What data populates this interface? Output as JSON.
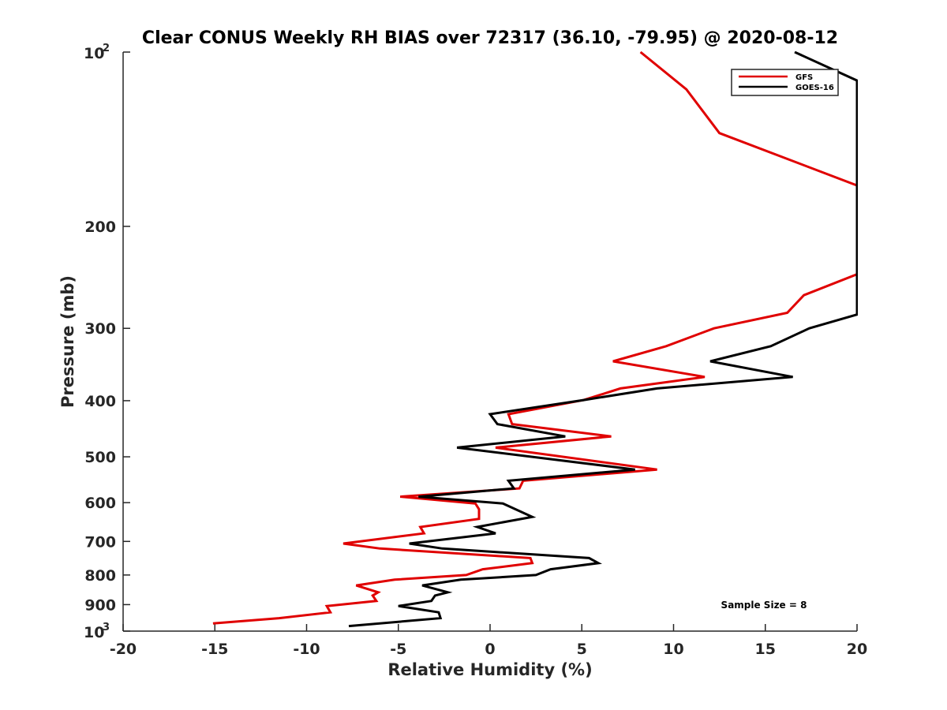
{
  "chart_data": {
    "type": "line",
    "title": "Clear CONUS Weekly RH BIAS over 72317 (36.10, -79.95) @ 2020-08-12",
    "xlabel": "Relative Humidity (%)",
    "ylabel": "Pressure (mb)",
    "xlim": [
      -20,
      20
    ],
    "ylim": [
      100,
      1000
    ],
    "y_scale": "log",
    "y_reversed": true,
    "x_ticks": [
      "-20",
      "-15",
      "-10",
      "-5",
      "0",
      "5",
      "10",
      "15",
      "20"
    ],
    "y_ticks": [
      {
        "value": 100,
        "label": "10",
        "sup": "2"
      },
      {
        "value": 200,
        "label": "200"
      },
      {
        "value": 300,
        "label": "300"
      },
      {
        "value": 400,
        "label": "400"
      },
      {
        "value": 500,
        "label": "500"
      },
      {
        "value": 600,
        "label": "600"
      },
      {
        "value": 700,
        "label": "700"
      },
      {
        "value": 800,
        "label": "800"
      },
      {
        "value": 900,
        "label": "900"
      },
      {
        "value": 1000,
        "label": "10",
        "sup": "3"
      }
    ],
    "legend_position": "top-right",
    "annotation": "Sample Size = 8",
    "series": [
      {
        "name": "GFS",
        "color": "#e00000",
        "points": [
          [
            8.2,
            100
          ],
          [
            10.7,
            116
          ],
          [
            12.5,
            138
          ],
          [
            20,
            170
          ],
          [
            20,
            242
          ],
          [
            17.1,
            263
          ],
          [
            16.2,
            282
          ],
          [
            12.2,
            300
          ],
          [
            9.6,
            322
          ],
          [
            6.7,
            342
          ],
          [
            11.7,
            364
          ],
          [
            7.1,
            381
          ],
          [
            5.1,
            399
          ],
          [
            1.0,
            422
          ],
          [
            1.2,
            439
          ],
          [
            6.6,
            461
          ],
          [
            0.3,
            482
          ],
          [
            9.1,
            526
          ],
          [
            1.8,
            550
          ],
          [
            1.6,
            567
          ],
          [
            -4.9,
            586
          ],
          [
            -0.8,
            602
          ],
          [
            -0.6,
            616
          ],
          [
            -0.6,
            640
          ],
          [
            -3.8,
            661
          ],
          [
            -3.6,
            678
          ],
          [
            -8.0,
            706
          ],
          [
            -6.0,
            720
          ],
          [
            2.2,
            748
          ],
          [
            2.3,
            763
          ],
          [
            -0.4,
            782
          ],
          [
            -1.3,
            800
          ],
          [
            -5.2,
            815
          ],
          [
            -7.3,
            834
          ],
          [
            -6.1,
            857
          ],
          [
            -6.4,
            868
          ],
          [
            -6.2,
            887
          ],
          [
            -8.9,
            905
          ],
          [
            -8.7,
            928
          ],
          [
            -11.5,
            950
          ],
          [
            -15.1,
            970
          ]
        ]
      },
      {
        "name": "GOES-16",
        "color": "#000000",
        "points": [
          [
            16.6,
            100
          ],
          [
            20,
            112
          ],
          [
            20,
            284
          ],
          [
            17.4,
            300
          ],
          [
            15.3,
            322
          ],
          [
            12.0,
            342
          ],
          [
            16.5,
            364
          ],
          [
            9.1,
            381
          ],
          [
            5.1,
            399
          ],
          [
            0.0,
            422
          ],
          [
            0.4,
            439
          ],
          [
            4.1,
            461
          ],
          [
            -1.8,
            482
          ],
          [
            7.9,
            526
          ],
          [
            1.0,
            550
          ],
          [
            1.3,
            567
          ],
          [
            -3.9,
            586
          ],
          [
            0.7,
            602
          ],
          [
            2.3,
            635
          ],
          [
            -0.7,
            661
          ],
          [
            0.3,
            678
          ],
          [
            -4.4,
            706
          ],
          [
            -2.6,
            720
          ],
          [
            5.4,
            748
          ],
          [
            5.9,
            763
          ],
          [
            3.3,
            782
          ],
          [
            2.5,
            800
          ],
          [
            -1.6,
            815
          ],
          [
            -3.7,
            834
          ],
          [
            -2.3,
            857
          ],
          [
            -3.0,
            868
          ],
          [
            -3.2,
            887
          ],
          [
            -5.0,
            905
          ],
          [
            -2.8,
            928
          ],
          [
            -2.7,
            950
          ],
          [
            -7.7,
            980
          ]
        ]
      }
    ]
  }
}
